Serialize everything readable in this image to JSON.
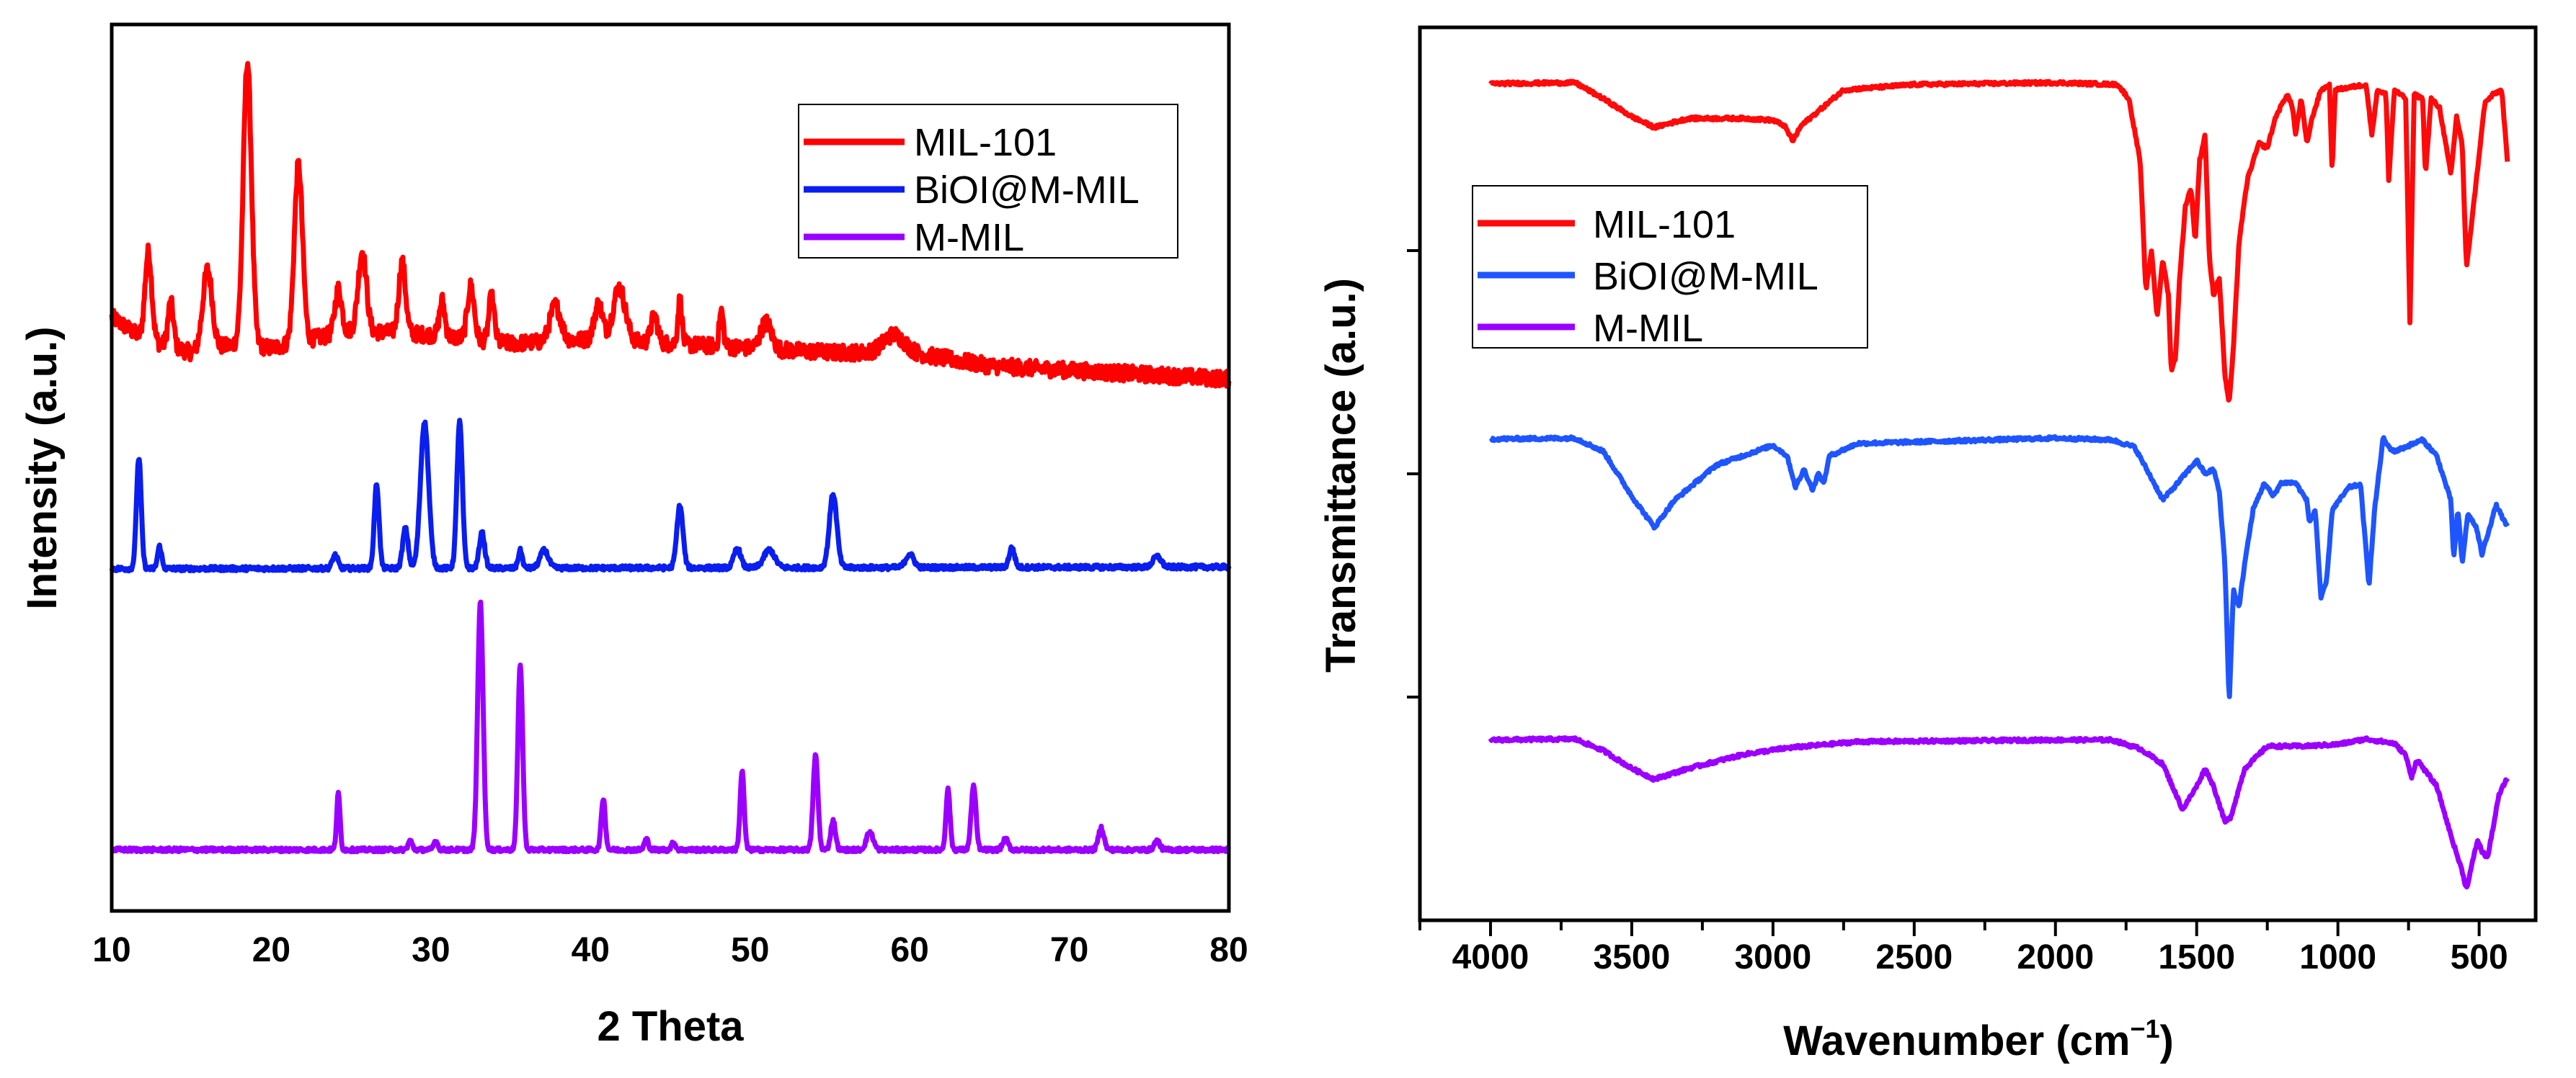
{
  "chart_data": [
    {
      "type": "line",
      "title": "",
      "xlabel": "2 Theta",
      "ylabel": "Intensity (a.u.)",
      "xlim": [
        10,
        80
      ],
      "ylim": [
        0,
        100
      ],
      "xticks": [
        "10",
        "20",
        "30",
        "40",
        "50",
        "60",
        "70",
        "80"
      ],
      "legend_position": "top-right",
      "legend": [
        "MIL-101",
        "BiOI@M-MIL",
        "M-MIL"
      ],
      "series": [
        {
          "name": "MIL-101",
          "color": "#ff0000",
          "noise": 1.8,
          "baseline": [
            [
              10,
              67
            ],
            [
              12,
              64.5
            ],
            [
              15,
              63
            ],
            [
              18,
              64
            ],
            [
              20,
              63.5
            ],
            [
              25,
              65.5
            ],
            [
              30,
              65
            ],
            [
              35,
              64
            ],
            [
              40,
              64.5
            ],
            [
              45,
              64
            ],
            [
              50,
              63.5
            ],
            [
              55,
              63
            ],
            [
              60,
              63
            ],
            [
              65,
              61.5
            ],
            [
              70,
              61
            ],
            [
              75,
              60.5
            ],
            [
              80,
              60
            ]
          ],
          "peaks": [
            [
              12.3,
              10,
              0.5
            ],
            [
              13.7,
              5,
              0.4
            ],
            [
              16,
              9,
              0.7
            ],
            [
              18.5,
              32,
              0.6
            ],
            [
              21.7,
              20,
              0.6
            ],
            [
              24.2,
              5,
              0.5
            ],
            [
              25.7,
              9,
              0.6
            ],
            [
              28.2,
              8,
              0.5
            ],
            [
              30.7,
              4,
              0.4
            ],
            [
              32.5,
              6,
              0.5
            ],
            [
              33.8,
              5,
              0.4
            ],
            [
              37.8,
              4,
              0.8
            ],
            [
              40.5,
              4,
              0.6
            ],
            [
              41.8,
              6,
              0.9
            ],
            [
              44,
              3,
              0.5
            ],
            [
              45.6,
              5,
              0.3
            ],
            [
              48.2,
              4,
              0.3
            ],
            [
              51,
              3,
              0.8
            ],
            [
              59,
              2,
              1.5
            ]
          ]
        },
        {
          "name": "BiOI@M-MIL",
          "color": "#0a1ef0",
          "noise": 0.5,
          "baseline": [
            [
              10,
              38.6
            ],
            [
              80,
              38.8
            ]
          ],
          "peaks": [
            [
              11.7,
              12.5,
              0.35
            ],
            [
              13,
              2.5,
              0.3
            ],
            [
              24,
              1.5,
              0.4
            ],
            [
              26.6,
              9.5,
              0.35
            ],
            [
              28.4,
              4.5,
              0.4
            ],
            [
              29.6,
              16.5,
              0.6
            ],
            [
              31.8,
              16.5,
              0.4
            ],
            [
              33.2,
              4,
              0.4
            ],
            [
              35.6,
              2,
              0.3
            ],
            [
              37.1,
              2,
              0.6
            ],
            [
              45.6,
              7,
              0.45
            ],
            [
              49.2,
              2.2,
              0.5
            ],
            [
              51.2,
              2,
              0.8
            ],
            [
              55.2,
              8.3,
              0.55
            ],
            [
              60,
              1.5,
              0.6
            ],
            [
              66.4,
              2.2,
              0.4
            ],
            [
              75.5,
              1.2,
              0.6
            ]
          ]
        },
        {
          "name": "M-MIL",
          "color": "#9b00ff",
          "noise": 0.45,
          "baseline": [
            [
              10,
              6.9
            ],
            [
              80,
              6.9
            ]
          ],
          "peaks": [
            [
              24.2,
              6.3,
              0.25
            ],
            [
              28.7,
              1,
              0.3
            ],
            [
              30.3,
              1,
              0.3
            ],
            [
              33.1,
              28,
              0.4
            ],
            [
              35.6,
              21,
              0.35
            ],
            [
              40.8,
              5.8,
              0.3
            ],
            [
              43.5,
              1.2,
              0.3
            ],
            [
              45.2,
              0.8,
              0.3
            ],
            [
              49.5,
              8.8,
              0.3
            ],
            [
              54.1,
              10.7,
              0.35
            ],
            [
              55.2,
              3.3,
              0.35
            ],
            [
              57.5,
              2,
              0.5
            ],
            [
              62.4,
              6.8,
              0.3
            ],
            [
              64,
              7.2,
              0.35
            ],
            [
              66,
              1.2,
              0.4
            ],
            [
              72,
              2.5,
              0.4
            ],
            [
              75.5,
              1,
              0.4
            ]
          ]
        }
      ]
    },
    {
      "type": "line",
      "title": "",
      "xlabel": "Wavenumber (cm",
      "xlabel_sup": "−1",
      "xlabel_end": ")",
      "ylabel": "Transmittance (a.u.)",
      "xlim": [
        4250,
        300
      ],
      "ylim": [
        0,
        100
      ],
      "xticks": [
        "4000",
        "3500",
        "3000",
        "2500",
        "2000",
        "1500",
        "1000",
        "500"
      ],
      "yticks": [
        25,
        50,
        75
      ],
      "legend_position": "top-left",
      "legend": [
        "MIL-101",
        "BiOI@M-MIL",
        "M-MIL"
      ],
      "series": [
        {
          "name": "MIL-101",
          "color": "#ff0a0a",
          "points": [
            [
              4000,
              93.7
            ],
            [
              3700,
              93.8
            ],
            [
              3600,
              92
            ],
            [
              3500,
              90
            ],
            [
              3420,
              88.8
            ],
            [
              3300,
              89.8
            ],
            [
              3100,
              89.8
            ],
            [
              3000,
              89.6
            ],
            [
              2960,
              89
            ],
            [
              2930,
              87.3
            ],
            [
              2900,
              89
            ],
            [
              2750,
              93
            ],
            [
              2500,
              93.6
            ],
            [
              2000,
              93.8
            ],
            [
              1780,
              93.6
            ],
            [
              1740,
              92
            ],
            [
              1700,
              85
            ],
            [
              1680,
              70.5
            ],
            [
              1660,
              75
            ],
            [
              1640,
              67.6
            ],
            [
              1620,
              74
            ],
            [
              1600,
              70
            ],
            [
              1590,
              61.5
            ],
            [
              1575,
              63
            ],
            [
              1560,
              72
            ],
            [
              1540,
              80
            ],
            [
              1520,
              82
            ],
            [
              1505,
              76
            ],
            [
              1490,
              85
            ],
            [
              1470,
              88
            ],
            [
              1455,
              74
            ],
            [
              1440,
              70
            ],
            [
              1420,
              72
            ],
            [
              1400,
              61
            ],
            [
              1385,
              57.9
            ],
            [
              1370,
              64
            ],
            [
              1350,
              76
            ],
            [
              1320,
              83
            ],
            [
              1280,
              87
            ],
            [
              1250,
              86.5
            ],
            [
              1220,
              90
            ],
            [
              1180,
              92.5
            ],
            [
              1160,
              91
            ],
            [
              1150,
              88
            ],
            [
              1130,
              92
            ],
            [
              1110,
              87
            ],
            [
              1090,
              90
            ],
            [
              1060,
              93
            ],
            [
              1030,
              93.5
            ],
            [
              1020,
              83.5
            ],
            [
              1010,
              93
            ],
            [
              900,
              93.6
            ],
            [
              880,
              88
            ],
            [
              860,
              93
            ],
            [
              830,
              92.5
            ],
            [
              820,
              83
            ],
            [
              800,
              93
            ],
            [
              760,
              92
            ],
            [
              745,
              67
            ],
            [
              730,
              92.5
            ],
            [
              700,
              92
            ],
            [
              690,
              83.5
            ],
            [
              670,
              92
            ],
            [
              640,
              91
            ],
            [
              600,
              83.5
            ],
            [
              580,
              90
            ],
            [
              560,
              87
            ],
            [
              545,
              73
            ],
            [
              520,
              80
            ],
            [
              480,
              91.5
            ],
            [
              450,
              92.5
            ],
            [
              420,
              93
            ],
            [
              400,
              85
            ]
          ]
        },
        {
          "name": "BiOI@M-MIL",
          "color": "#1f55ff",
          "points": [
            [
              4000,
              53.9
            ],
            [
              3700,
              54
            ],
            [
              3600,
              52.5
            ],
            [
              3500,
              47.5
            ],
            [
              3420,
              44
            ],
            [
              3350,
              47
            ],
            [
              3200,
              51
            ],
            [
              3000,
              53.2
            ],
            [
              2950,
              52
            ],
            [
              2920,
              48.5
            ],
            [
              2890,
              50.5
            ],
            [
              2860,
              48.2
            ],
            [
              2840,
              50
            ],
            [
              2820,
              49
            ],
            [
              2800,
              52
            ],
            [
              2700,
              53.4
            ],
            [
              2000,
              54
            ],
            [
              1800,
              53.8
            ],
            [
              1720,
              53
            ],
            [
              1660,
              49.5
            ],
            [
              1620,
              47.1
            ],
            [
              1580,
              48.5
            ],
            [
              1500,
              51.5
            ],
            [
              1470,
              50
            ],
            [
              1440,
              50.5
            ],
            [
              1420,
              48
            ],
            [
              1400,
              40
            ],
            [
              1385,
              24.3
            ],
            [
              1370,
              37
            ],
            [
              1350,
              35
            ],
            [
              1330,
              40
            ],
            [
              1300,
              46
            ],
            [
              1260,
              49
            ],
            [
              1230,
              47.5
            ],
            [
              1200,
              49
            ],
            [
              1150,
              49
            ],
            [
              1110,
              47
            ],
            [
              1100,
              44.5
            ],
            [
              1080,
              46
            ],
            [
              1060,
              36
            ],
            [
              1040,
              38
            ],
            [
              1020,
              46
            ],
            [
              960,
              48.5
            ],
            [
              920,
              48.8
            ],
            [
              890,
              37.5
            ],
            [
              870,
              46
            ],
            [
              840,
              54
            ],
            [
              820,
              53
            ],
            [
              800,
              52.5
            ],
            [
              700,
              53.8
            ],
            [
              650,
              52
            ],
            [
              600,
              47
            ],
            [
              590,
              40.5
            ],
            [
              575,
              46
            ],
            [
              560,
              40
            ],
            [
              540,
              45.5
            ],
            [
              510,
              44
            ],
            [
              490,
              41
            ],
            [
              440,
              46.5
            ],
            [
              400,
              44
            ]
          ]
        },
        {
          "name": "M-MIL",
          "color": "#9b00ff",
          "points": [
            [
              4000,
              20.2
            ],
            [
              3700,
              20.3
            ],
            [
              3600,
              19
            ],
            [
              3500,
              17
            ],
            [
              3420,
              15.8
            ],
            [
              3300,
              17
            ],
            [
              3100,
              18.6
            ],
            [
              2950,
              19.3
            ],
            [
              2700,
              20
            ],
            [
              2000,
              20.2
            ],
            [
              1800,
              20.2
            ],
            [
              1700,
              19.2
            ],
            [
              1620,
              17.5
            ],
            [
              1550,
              12.4
            ],
            [
              1500,
              15
            ],
            [
              1470,
              17
            ],
            [
              1440,
              15
            ],
            [
              1400,
              11
            ],
            [
              1380,
              11.5
            ],
            [
              1330,
              17
            ],
            [
              1250,
              19.5
            ],
            [
              1120,
              19.5
            ],
            [
              1000,
              19.7
            ],
            [
              900,
              20.3
            ],
            [
              800,
              19.8
            ],
            [
              760,
              18.5
            ],
            [
              740,
              16
            ],
            [
              720,
              18
            ],
            [
              650,
              15
            ],
            [
              600,
              9.5
            ],
            [
              560,
              5.5
            ],
            [
              545,
              3.5
            ],
            [
              520,
              7
            ],
            [
              505,
              9
            ],
            [
              490,
              7.7
            ],
            [
              470,
              7
            ],
            [
              430,
              14
            ],
            [
              400,
              16
            ]
          ]
        }
      ]
    }
  ]
}
